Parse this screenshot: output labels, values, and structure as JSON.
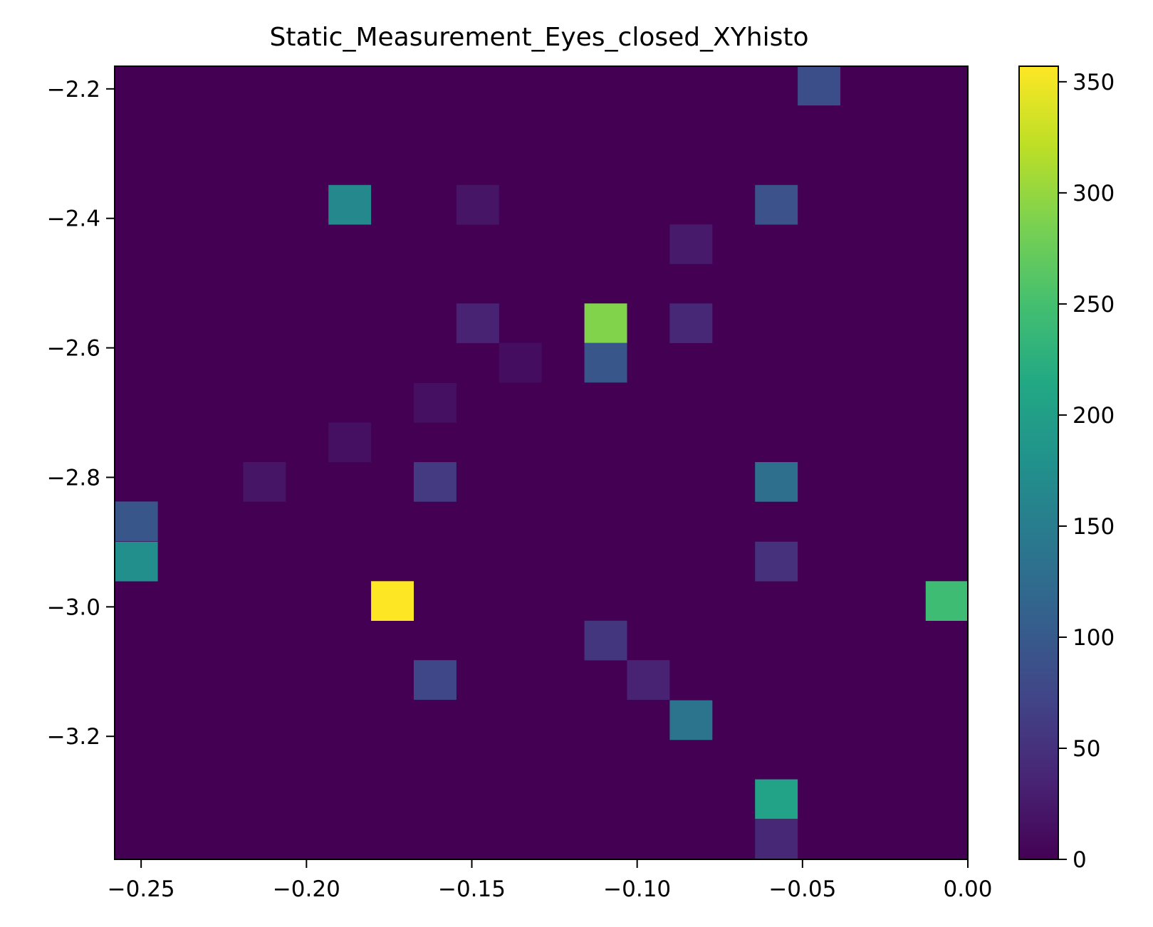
{
  "chart_data": {
    "type": "heatmap",
    "title": "Static_Measurement_Eyes_closed_XYhisto",
    "xlabel": "",
    "ylabel": "",
    "xlim": [
      -0.258,
      0.0
    ],
    "ylim": [
      -3.39,
      -2.165
    ],
    "x_ticks": [
      -0.25,
      -0.2,
      -0.15,
      -0.1,
      -0.05,
      0.0
    ],
    "x_tick_labels": [
      "−0.25",
      "−0.20",
      "−0.15",
      "−0.10",
      "−0.05",
      "0.00"
    ],
    "y_ticks": [
      -2.2,
      -2.4,
      -2.6,
      -2.8,
      -3.0,
      -3.2
    ],
    "y_tick_labels": [
      "−2.2",
      "−2.4",
      "−2.6",
      "−2.8",
      "−3.0",
      "−3.2"
    ],
    "bins_x": 20,
    "bins_y": 20,
    "colormap": "viridis",
    "colorbar": {
      "range": [
        0,
        357
      ],
      "ticks": [
        0,
        50,
        100,
        150,
        200,
        250,
        300,
        350
      ],
      "tick_labels": [
        "0",
        "50",
        "100",
        "150",
        "200",
        "250",
        "300",
        "350"
      ]
    },
    "background_count": 0,
    "cells": [
      {
        "x": -0.045,
        "y": -2.195,
        "count": 85
      },
      {
        "x": -0.1869,
        "y": -2.379,
        "count": 165
      },
      {
        "x": -0.1482,
        "y": -2.379,
        "count": 20
      },
      {
        "x": -0.0579,
        "y": -2.379,
        "count": 90
      },
      {
        "x": -0.0837,
        "y": -2.44,
        "count": 25
      },
      {
        "x": -0.1482,
        "y": -2.562,
        "count": 35
      },
      {
        "x": -0.1095,
        "y": -2.562,
        "count": 290
      },
      {
        "x": -0.0837,
        "y": -2.562,
        "count": 40
      },
      {
        "x": -0.1353,
        "y": -2.623,
        "count": 12
      },
      {
        "x": -0.1095,
        "y": -2.623,
        "count": 95
      },
      {
        "x": -0.1611,
        "y": -2.685,
        "count": 15
      },
      {
        "x": -0.1869,
        "y": -2.746,
        "count": 15
      },
      {
        "x": -0.2127,
        "y": -2.807,
        "count": 20
      },
      {
        "x": -0.1611,
        "y": -2.807,
        "count": 60
      },
      {
        "x": -0.0579,
        "y": -2.807,
        "count": 130
      },
      {
        "x": -0.2514,
        "y": -2.868,
        "count": 95
      },
      {
        "x": -0.2514,
        "y": -2.93,
        "count": 175
      },
      {
        "x": -0.0579,
        "y": -2.93,
        "count": 50
      },
      {
        "x": -0.174,
        "y": -2.991,
        "count": 357
      },
      {
        "x": -0.0063,
        "y": -2.991,
        "count": 245
      },
      {
        "x": -0.1095,
        "y": -3.052,
        "count": 55
      },
      {
        "x": -0.1611,
        "y": -3.113,
        "count": 75
      },
      {
        "x": -0.0966,
        "y": -3.113,
        "count": 35
      },
      {
        "x": -0.0837,
        "y": -3.175,
        "count": 135
      },
      {
        "x": -0.0579,
        "y": -3.297,
        "count": 205
      },
      {
        "x": -0.0579,
        "y": -3.359,
        "count": 40
      }
    ]
  }
}
